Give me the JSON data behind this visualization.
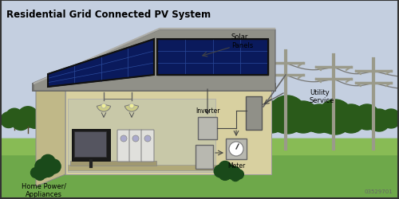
{
  "title": "Residential Grid Connected PV System",
  "bg_color": "#ccd4e0",
  "sky_color": "#c4cfe0",
  "ground_color": "#6ea84a",
  "ground_mid_color": "#88bb55",
  "house_wall_color": "#d8d0a0",
  "house_side_color": "#c0b888",
  "house_roof_color": "#909088",
  "roof_edge_color": "#b0b0a8",
  "solar_panel_color": "#0a1a5c",
  "solar_grid_color": "#2a4a9c",
  "tree_color": "#2a5a1a",
  "tree_dark": "#1a4010",
  "pole_color": "#9a9a8a",
  "label_solar": "Solar\nPanels",
  "label_inverter": "Inverter",
  "label_meter": "Meter",
  "label_utility": "Utility\nService",
  "label_home": "Home Power/\nAppliances",
  "label_id": "03529701",
  "border_color": "#333333",
  "arrow_color": "#444444",
  "wire_color": "#555555",
  "interior_color": "#c8c8a8",
  "interior_floor": "#b0a878",
  "lamp_color": "#cccc88",
  "tv_color": "#2a2a2a",
  "appliance_color": "#e0e0dc",
  "box_color": "#b8b8b0",
  "box_dark": "#909088"
}
